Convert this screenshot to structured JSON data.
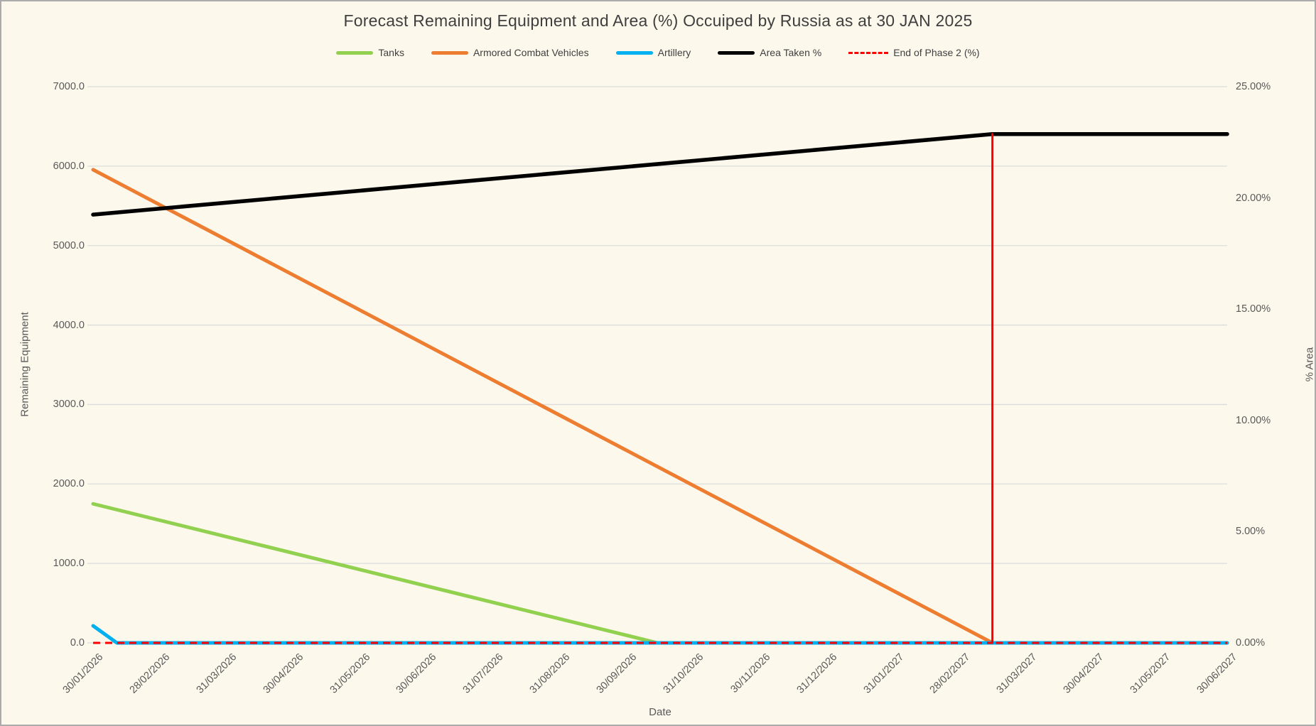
{
  "chart_data": {
    "type": "line",
    "title": "Forecast Remaining Equipment and Area (%) Occuiped by Russia as at 30 JAN 2025",
    "legend_position": "top",
    "grid": "horizontal-major-left-axis",
    "background_color": "#FDF8EC",
    "gridline_color": "#DCDCDC",
    "text_colors": {
      "title": "#3F3F3F",
      "ticks": "#595959"
    },
    "x_axis": {
      "title": "Date",
      "labels": [
        "30/01/2026",
        "28/02/2026",
        "31/03/2026",
        "30/04/2026",
        "31/05/2026",
        "30/06/2026",
        "31/07/2026",
        "31/08/2026",
        "30/09/2026",
        "31/10/2026",
        "30/11/2026",
        "31/12/2026",
        "31/01/2027",
        "28/02/2027",
        "31/03/2027",
        "30/04/2027",
        "31/05/2027",
        "30/06/2027"
      ],
      "label_rotation_deg": -45
    },
    "y_left": {
      "title": "Remaining Equipment",
      "min": 0,
      "max": 7000,
      "step": 1000,
      "tick_labels": [
        "7000.0",
        "6000.0",
        "5000.0",
        "4000.0",
        "3000.0",
        "2000.0",
        "1000.0",
        "0.0"
      ],
      "tick_values": [
        7000,
        6000,
        5000,
        4000,
        3000,
        2000,
        1000,
        0
      ]
    },
    "y_right": {
      "title": "% Area",
      "min": 0,
      "max": 25,
      "step": 5,
      "tick_labels": [
        "25.00%",
        "20.00%",
        "15.00%",
        "10.00%",
        "5.00%",
        "0.00%"
      ],
      "tick_values": [
        25,
        20,
        15,
        10,
        5,
        0
      ]
    },
    "series": [
      {
        "name": "Tanks",
        "color": "#92D050",
        "axis": "left",
        "style": "solid",
        "width": 5,
        "points": [
          {
            "f": 0,
            "v": 1750
          },
          {
            "f": 0.4975,
            "v": 0
          },
          {
            "f": 1,
            "v": 0
          }
        ]
      },
      {
        "name": "Armored Combat Vehicles",
        "color": "#ED7D31",
        "axis": "left",
        "style": "solid",
        "width": 5,
        "points": [
          {
            "f": 0,
            "v": 5955
          },
          {
            "f": 0.793,
            "v": 0
          },
          {
            "f": 1,
            "v": 0
          }
        ]
      },
      {
        "name": "Artillery",
        "color": "#00B0F0",
        "axis": "left",
        "style": "solid",
        "width": 5,
        "points": [
          {
            "f": 0,
            "v": 215
          },
          {
            "f": 0.021,
            "v": 0
          },
          {
            "f": 1,
            "v": 0
          }
        ]
      },
      {
        "name": "Area Taken %",
        "color": "#000000",
        "axis": "right",
        "style": "solid",
        "width": 5.5,
        "points": [
          {
            "f": 0,
            "v": 19.25
          },
          {
            "f": 0.793,
            "v": 22.87
          },
          {
            "f": 1,
            "v": 22.87
          }
        ]
      },
      {
        "name": "End of Phase 2 (%)",
        "color": "#FF0000",
        "axis": "right",
        "style": "dashed",
        "width": 3,
        "points": [
          {
            "f": 0,
            "v": 0
          },
          {
            "f": 0.793,
            "v": 0
          },
          {
            "f": 0.793,
            "v": 22.87
          },
          {
            "f": 0.793,
            "v": 0
          },
          {
            "f": 1,
            "v": 0
          }
        ]
      }
    ]
  }
}
